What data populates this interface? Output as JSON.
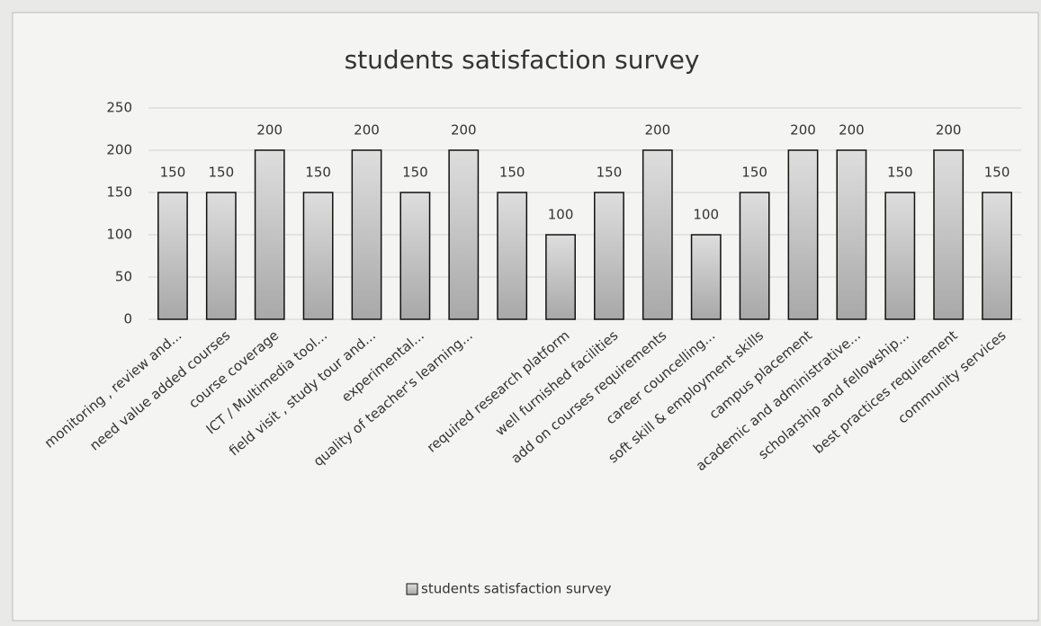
{
  "chart_data": {
    "type": "bar",
    "title": "students satisfaction survey",
    "categories": [
      "monitoring , review and...",
      "need value added courses",
      "course coverage",
      "ICT / Multimedia tool...",
      "field visit , study tour and...",
      "experimental...",
      "quality of teacher's learning...",
      null,
      "required research platform",
      "well furnished facilities",
      "add on courses requirements",
      "career councelling...",
      "soft skill & employment skills",
      "campus placement",
      "academic and administrative...",
      "scholarship and fellowship...",
      "best practices requirement",
      "community services"
    ],
    "series": [
      {
        "name": "students satisfaction survey",
        "color": "#c4c4c4",
        "values": [
          150,
          150,
          200,
          150,
          200,
          150,
          200,
          150,
          100,
          150,
          200,
          100,
          150,
          200,
          200,
          150,
          200,
          150
        ]
      }
    ],
    "ylim": [
      0,
      250
    ],
    "yticks": [
      0,
      50,
      100,
      150,
      200,
      250
    ],
    "grid": true,
    "legend": "bottom"
  }
}
